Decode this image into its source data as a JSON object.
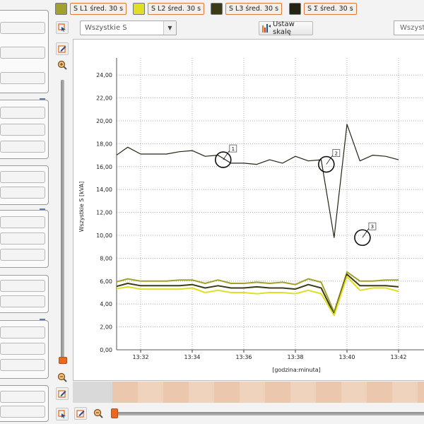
{
  "legend": {
    "items": [
      {
        "label": "S L1 śred. 30 s",
        "color": "#a3a12e"
      },
      {
        "label": "S L2 śred. 30 s",
        "color": "#dfe024"
      },
      {
        "label": "S L3 śred. 30 s",
        "color": "#3b3b17"
      },
      {
        "label": "S Σ śred. 30 s",
        "color": "#242412"
      }
    ]
  },
  "toolbar": {
    "select_value": "Wszystkie S",
    "scale_button_label": "Ustaw skalę",
    "right_select_value": "Wszystk"
  },
  "chart_data": {
    "type": "line",
    "ylabel": "Wszystkie S [kVA]",
    "xlabel": "[godzina:minuta]",
    "y_ticks": [
      "0,00",
      "2,00",
      "4,00",
      "6,00",
      "8,00",
      "10,00",
      "12,00",
      "14,00",
      "16,00",
      "18,00",
      "20,00",
      "22,00",
      "24,00"
    ],
    "x_ticks": [
      "13:32",
      "13:34",
      "13:36",
      "13:38",
      "13:40",
      "13:42"
    ],
    "ylim": [
      0,
      25
    ],
    "x_start_min": 31.0,
    "x_step_min": 0.5,
    "series": [
      {
        "name": "S L1 śred. 30 s",
        "color": "#a3a12e",
        "width": 2,
        "values": [
          5.9,
          6.2,
          6.0,
          6.0,
          6.0,
          6.1,
          6.1,
          5.8,
          6.1,
          5.8,
          5.8,
          5.9,
          5.8,
          5.9,
          5.7,
          6.2,
          5.9,
          3.3,
          6.8,
          6.0,
          6.0,
          6.1,
          6.1
        ]
      },
      {
        "name": "S L2 śred. 30 s",
        "color": "#dfe024",
        "width": 2,
        "values": [
          5.3,
          5.5,
          5.3,
          5.3,
          5.3,
          5.3,
          5.4,
          5.0,
          5.2,
          5.0,
          5.0,
          4.9,
          5.0,
          5.0,
          4.9,
          5.2,
          4.9,
          3.0,
          6.4,
          5.2,
          5.4,
          5.4,
          5.1
        ]
      },
      {
        "name": "S L3 śred. 30 s",
        "color": "#3b3b17",
        "width": 2,
        "values": [
          5.5,
          5.8,
          5.6,
          5.6,
          5.6,
          5.6,
          5.7,
          5.4,
          5.6,
          5.4,
          5.4,
          5.5,
          5.4,
          5.4,
          5.3,
          5.7,
          5.4,
          3.1,
          6.6,
          5.6,
          5.6,
          5.6,
          5.5
        ]
      },
      {
        "name": "S Σ śred. 30 s",
        "color": "#242412",
        "width": 1.2,
        "values": [
          16.9,
          17.7,
          17.1,
          17.1,
          17.1,
          17.3,
          17.4,
          16.9,
          17.0,
          16.3,
          16.3,
          16.2,
          16.6,
          16.3,
          16.9,
          16.5,
          16.6,
          9.8,
          19.7,
          16.5,
          17.0,
          16.9,
          16.6
        ]
      }
    ],
    "markers": [
      {
        "label": "1",
        "x_min": 35.2,
        "y": 16.6
      },
      {
        "label": "2",
        "x_min": 39.2,
        "y": 16.2
      },
      {
        "label": "3",
        "x_min": 40.6,
        "y": 9.8
      }
    ]
  }
}
